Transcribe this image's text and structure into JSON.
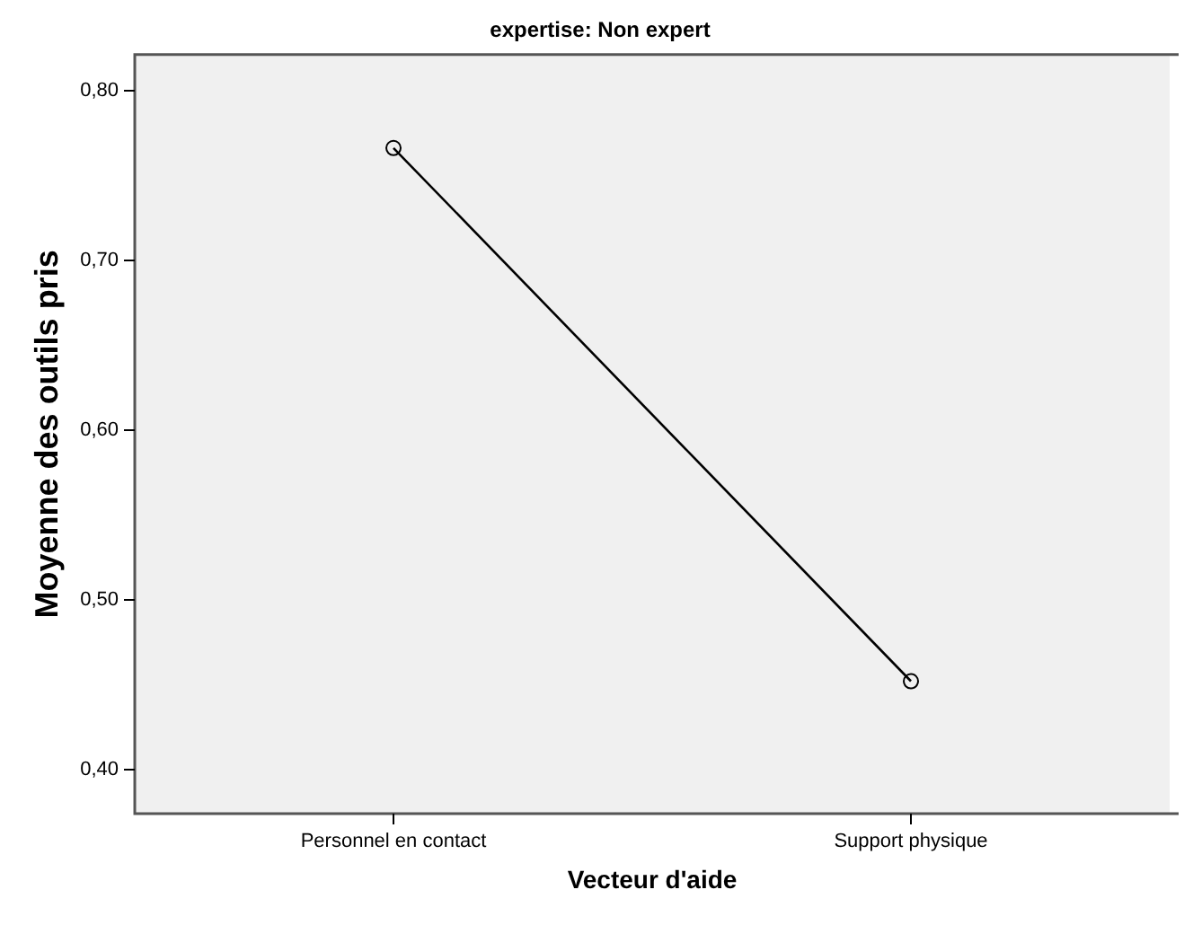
{
  "chart_data": {
    "type": "line",
    "title": "expertise: Non expert",
    "xlabel": "Vecteur d'aide",
    "ylabel": "Moyenne des outils pris",
    "categories": [
      "Personnel en contact",
      "Support physique"
    ],
    "series": [
      {
        "color": "#000000",
        "values": [
          0.766,
          0.452
        ]
      }
    ],
    "ylim": [
      0.374,
      0.821
    ],
    "yticks": [
      {
        "value": 0.4,
        "label": "0,40"
      },
      {
        "value": 0.5,
        "label": "0,50"
      },
      {
        "value": 0.6,
        "label": "0,60"
      },
      {
        "value": 0.7,
        "label": "0,70"
      },
      {
        "value": 0.8,
        "label": "0,80"
      }
    ],
    "grid": false,
    "legend": false,
    "marker": "circle",
    "line_style": "solid"
  }
}
